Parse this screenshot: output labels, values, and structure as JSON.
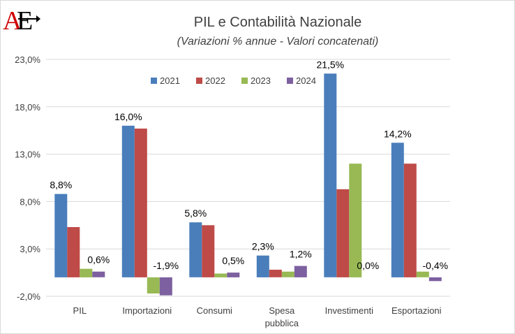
{
  "logo": {
    "text": "AE",
    "colors": [
      "#d00000",
      "#000000"
    ]
  },
  "chart_data": {
    "type": "bar",
    "title": "PIL e Contabilità Nazionale",
    "subtitle": "(Variazioni % annue - Valori concatenati)",
    "categories": [
      [
        "PIL"
      ],
      [
        "Importazioni"
      ],
      [
        "Consumi"
      ],
      [
        "Spesa",
        "pubblica"
      ],
      [
        "Investimenti"
      ],
      [
        "Esportazioni"
      ]
    ],
    "series": [
      {
        "name": "2021",
        "color": "#4a7ebb",
        "values": [
          8.8,
          16.0,
          5.8,
          2.3,
          21.5,
          14.2
        ]
      },
      {
        "name": "2022",
        "color": "#be4b48",
        "values": [
          5.3,
          15.7,
          5.5,
          0.8,
          9.3,
          12.0
        ]
      },
      {
        "name": "2023",
        "color": "#98b954",
        "values": [
          0.9,
          -1.7,
          0.4,
          0.6,
          12.0,
          0.6
        ]
      },
      {
        "name": "2024",
        "color": "#7d60a0",
        "values": [
          0.6,
          -1.9,
          0.5,
          1.2,
          0.0,
          -0.4
        ]
      }
    ],
    "yticks": [
      "23,0%",
      "18,0%",
      "13,0%",
      "8,0%",
      "3,0%",
      "-2,0%"
    ],
    "ylim": [
      -2,
      23
    ],
    "grid": true,
    "legend_position": "top",
    "data_labels": [
      {
        "category": 0,
        "series": 0,
        "text": "8,8%"
      },
      {
        "category": 0,
        "series": 3,
        "text": "0,6%"
      },
      {
        "category": 1,
        "series": 0,
        "text": "16,0%"
      },
      {
        "category": 1,
        "series": 3,
        "text": "-1,9%"
      },
      {
        "category": 2,
        "series": 0,
        "text": "5,8%"
      },
      {
        "category": 2,
        "series": 3,
        "text": "0,5%"
      },
      {
        "category": 3,
        "series": 0,
        "text": "2,3%"
      },
      {
        "category": 3,
        "series": 3,
        "text": "1,2%"
      },
      {
        "category": 4,
        "series": 0,
        "text": "21,5%"
      },
      {
        "category": 4,
        "series": 3,
        "text": "0,0%"
      },
      {
        "category": 5,
        "series": 0,
        "text": "14,2%"
      },
      {
        "category": 5,
        "series": 3,
        "text": "-0,4%"
      }
    ]
  }
}
